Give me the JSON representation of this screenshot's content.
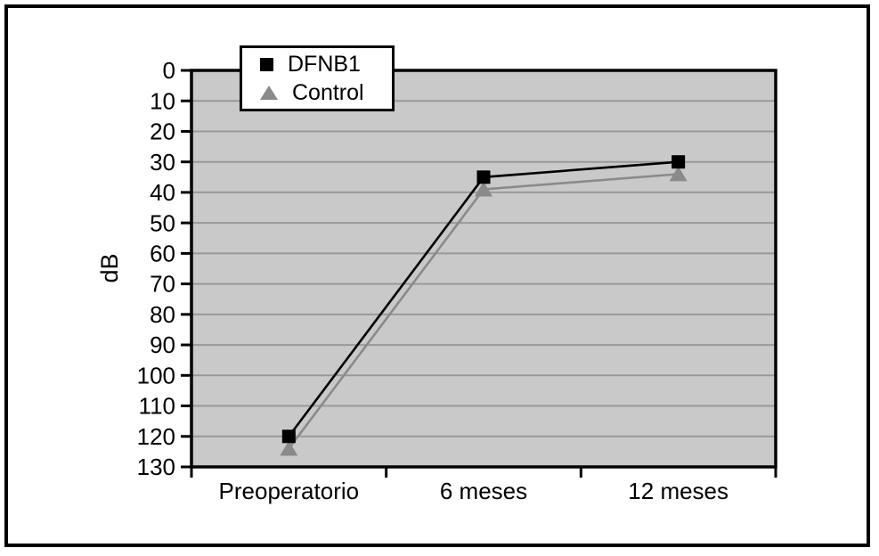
{
  "figure": {
    "ylabel": "dB",
    "plot_bg": "#c9c9c9",
    "gridline_color": "#999999",
    "axis_color": "#000000",
    "text_color": "#000000"
  },
  "chart_data": {
    "type": "line",
    "title": "",
    "xlabel": "",
    "ylabel": "dB",
    "categories": [
      "Preoperatorio",
      "6 meses",
      "12 meses"
    ],
    "series": [
      {
        "name": "DFNB1",
        "marker": "square",
        "color": "#000000",
        "values": [
          120,
          35,
          30
        ]
      },
      {
        "name": "Control",
        "marker": "triangle",
        "color": "#8a8a8a",
        "values": [
          124,
          39,
          34
        ]
      }
    ],
    "yticks": [
      0,
      10,
      20,
      30,
      40,
      50,
      60,
      70,
      80,
      90,
      100,
      110,
      120,
      130
    ],
    "ylim": [
      0,
      130
    ],
    "y_inverted": true,
    "grid": true,
    "legend_position": "top-inside"
  }
}
